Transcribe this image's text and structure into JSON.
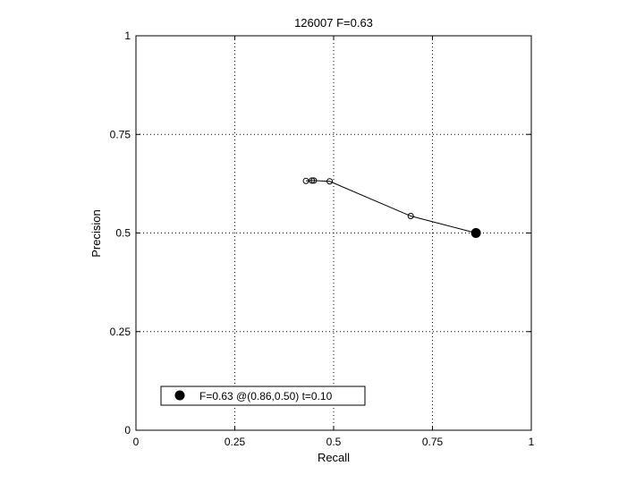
{
  "chart_data": {
    "type": "scatter",
    "title": "126007 F=0.63",
    "xlabel": "Recall",
    "ylabel": "Precision",
    "xlim": [
      0,
      1
    ],
    "ylim": [
      0,
      1
    ],
    "xticks": [
      0,
      0.25,
      0.5,
      0.75,
      1
    ],
    "yticks": [
      0,
      0.25,
      0.5,
      0.75,
      1
    ],
    "xtick_labels": [
      "0",
      "0.25",
      "0.5",
      "0.75",
      "1"
    ],
    "ytick_labels": [
      "0",
      "0.25",
      "0.5",
      "0.75",
      "1"
    ],
    "grid": true,
    "legend_position": "bottom-left",
    "series": [
      {
        "x": [
          0.43,
          0.445,
          0.45,
          0.49,
          0.695,
          0.86
        ],
        "y": [
          0.632,
          0.633,
          0.633,
          0.631,
          0.543,
          0.5
        ],
        "marker": "open-circle",
        "line": true,
        "color": "#000000"
      }
    ],
    "best_point": {
      "x": 0.86,
      "y": 0.5,
      "marker": "filled-circle",
      "label": "F=0.63 @(0.86,0.50) t=0.10"
    }
  }
}
